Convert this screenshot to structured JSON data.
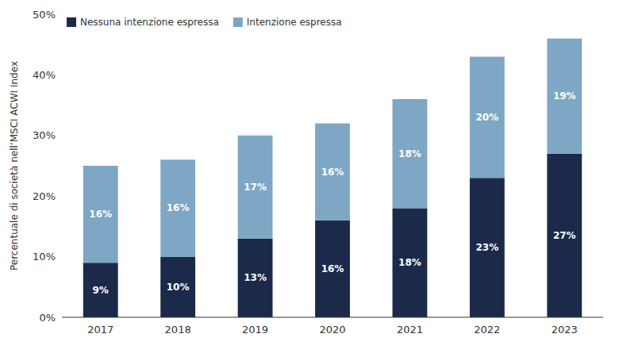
{
  "chart_data": {
    "type": "bar",
    "stacked": true,
    "categories": [
      "2017",
      "2018",
      "2019",
      "2020",
      "2021",
      "2022",
      "2023"
    ],
    "series": [
      {
        "name": "Nessuna intenzione espressa",
        "color": "#1b2a4a",
        "values": [
          9,
          10,
          13,
          16,
          18,
          23,
          27
        ],
        "value_labels": [
          "9%",
          "10%",
          "13%",
          "16%",
          "18%",
          "23%",
          "27%"
        ]
      },
      {
        "name": "Intenzione espressa",
        "color": "#7da7c4",
        "values": [
          16,
          16,
          17,
          16,
          18,
          20,
          19
        ],
        "value_labels": [
          "16%",
          "16%",
          "17%",
          "16%",
          "18%",
          "20%",
          "19%"
        ]
      }
    ],
    "y_label": "Percentuale di società nell’MSCI ACWI Index",
    "ylim": [
      0,
      50
    ],
    "yticks": [
      {
        "value": 0,
        "label": "0%"
      },
      {
        "value": 10,
        "label": "10%"
      },
      {
        "value": 20,
        "label": "20%"
      },
      {
        "value": 30,
        "label": "30%"
      },
      {
        "value": 40,
        "label": "40%"
      },
      {
        "value": 50,
        "label": "50%"
      }
    ],
    "grid": false,
    "legend": "upper left",
    "data_labels": true
  }
}
